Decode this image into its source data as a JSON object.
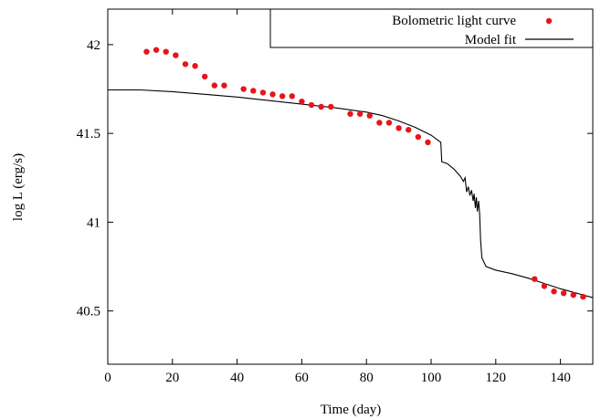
{
  "chart_data": {
    "type": "scatter",
    "title": "",
    "xlabel": "Time (day)",
    "ylabel": "log L (erg/s)",
    "xlim": [
      0,
      150
    ],
    "ylim": [
      40.2,
      42.2
    ],
    "xticks": [
      0,
      20,
      40,
      60,
      80,
      100,
      120,
      140
    ],
    "yticks": [
      40.5,
      41,
      41.5,
      42
    ],
    "ytick_labels": [
      "40.5",
      "41",
      "41.5",
      "42"
    ],
    "grid": false,
    "legend_position": "top-right",
    "series": [
      {
        "name": "Bolometric light curve",
        "kind": "points",
        "color": "#e8141c",
        "points": [
          [
            12,
            41.96
          ],
          [
            15,
            41.97
          ],
          [
            18,
            41.96
          ],
          [
            21,
            41.94
          ],
          [
            24,
            41.89
          ],
          [
            27,
            41.88
          ],
          [
            30,
            41.82
          ],
          [
            33,
            41.77
          ],
          [
            36,
            41.77
          ],
          [
            42,
            41.75
          ],
          [
            45,
            41.74
          ],
          [
            48,
            41.73
          ],
          [
            51,
            41.72
          ],
          [
            54,
            41.71
          ],
          [
            57,
            41.71
          ],
          [
            60,
            41.68
          ],
          [
            63,
            41.66
          ],
          [
            66,
            41.65
          ],
          [
            69,
            41.65
          ],
          [
            75,
            41.61
          ],
          [
            78,
            41.61
          ],
          [
            81,
            41.6
          ],
          [
            84,
            41.56
          ],
          [
            87,
            41.56
          ],
          [
            90,
            41.53
          ],
          [
            93,
            41.52
          ],
          [
            96,
            41.48
          ],
          [
            99,
            41.45
          ],
          [
            132,
            40.68
          ],
          [
            135,
            40.64
          ],
          [
            138,
            40.61
          ],
          [
            141,
            40.6
          ],
          [
            144,
            40.59
          ],
          [
            147,
            40.58
          ]
        ]
      },
      {
        "name": "Model fit",
        "kind": "line",
        "color": "#000000",
        "points": [
          [
            0,
            41.745
          ],
          [
            10,
            41.745
          ],
          [
            20,
            41.735
          ],
          [
            30,
            41.72
          ],
          [
            40,
            41.705
          ],
          [
            50,
            41.685
          ],
          [
            60,
            41.665
          ],
          [
            70,
            41.645
          ],
          [
            80,
            41.62
          ],
          [
            85,
            41.6
          ],
          [
            90,
            41.57
          ],
          [
            95,
            41.535
          ],
          [
            100,
            41.49
          ],
          [
            103,
            41.45
          ],
          [
            103.3,
            41.34
          ],
          [
            105,
            41.33
          ],
          [
            107,
            41.3
          ],
          [
            109,
            41.26
          ],
          [
            110,
            41.23
          ],
          [
            110.5,
            41.25
          ],
          [
            111,
            41.17
          ],
          [
            111.5,
            41.2
          ],
          [
            112,
            41.15
          ],
          [
            112.5,
            41.18
          ],
          [
            113,
            41.12
          ],
          [
            113.3,
            41.16
          ],
          [
            113.7,
            41.08
          ],
          [
            114,
            41.14
          ],
          [
            114.3,
            41.06
          ],
          [
            114.7,
            41.12
          ],
          [
            115,
            41.05
          ],
          [
            115.3,
            40.9
          ],
          [
            115.7,
            40.8
          ],
          [
            117,
            40.75
          ],
          [
            120,
            40.73
          ],
          [
            125,
            40.71
          ],
          [
            130,
            40.685
          ],
          [
            135,
            40.655
          ],
          [
            140,
            40.625
          ],
          [
            145,
            40.6
          ],
          [
            150,
            40.575
          ]
        ]
      }
    ]
  }
}
